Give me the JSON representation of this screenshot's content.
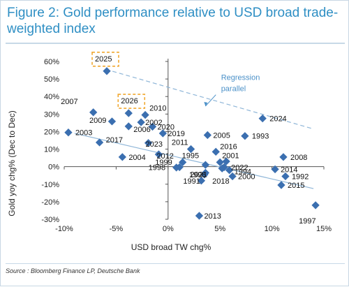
{
  "title": "Figure 2: Gold performance relative to USD broad trade-weighted index",
  "source": "Source : Bloomberg Finance LP, Deutsche Bank",
  "chart_data": {
    "type": "scatter",
    "xlabel": "USD broad TW chg%",
    "ylabel": "Gold yoy chg% (Dec to Dec)",
    "xlim": [
      -10,
      15
    ],
    "ylim": [
      -30,
      60
    ],
    "x_ticks": [
      -10,
      -5,
      0,
      5,
      10,
      15
    ],
    "x_tick_labels": [
      "-10%",
      "-5%",
      "0%",
      "5%",
      "10%",
      "15%"
    ],
    "y_ticks": [
      -30,
      -20,
      -10,
      0,
      10,
      20,
      30,
      40,
      50,
      60
    ],
    "y_tick_labels": [
      "-30%",
      "-20%",
      "-10%",
      "0%",
      "10%",
      "20%",
      "30%",
      "40%",
      "50%",
      "60%"
    ],
    "grid": false,
    "marker_color": "#3b6fb0",
    "line_color": "#8fb6d8",
    "highlight_color": "#f0a830",
    "points": [
      {
        "label": "2025",
        "x": -5.9,
        "y": 54.5,
        "highlight": true
      },
      {
        "label": "2026",
        "x": -3.8,
        "y": 30.5,
        "highlight": true
      },
      {
        "label": "2007",
        "x": -7.2,
        "y": 31.0
      },
      {
        "label": "2010",
        "x": -2.2,
        "y": 29.5
      },
      {
        "label": "2009",
        "x": -5.4,
        "y": 25.8
      },
      {
        "label": "2002",
        "x": -2.6,
        "y": 25.3
      },
      {
        "label": "2003",
        "x": -9.6,
        "y": 19.5
      },
      {
        "label": "2006",
        "x": -3.8,
        "y": 23.0
      },
      {
        "label": "2020",
        "x": -1.5,
        "y": 22.8
      },
      {
        "label": "2019",
        "x": -0.5,
        "y": 19.0
      },
      {
        "label": "2017",
        "x": -6.6,
        "y": 13.8
      },
      {
        "label": "2023",
        "x": -1.9,
        "y": 13.5
      },
      {
        "label": "2004",
        "x": -4.4,
        "y": 5.5
      },
      {
        "label": "2012",
        "x": -0.9,
        "y": 7.0
      },
      {
        "label": "2011",
        "x": 2.2,
        "y": 10.0
      },
      {
        "label": "2005",
        "x": 3.8,
        "y": 18.0
      },
      {
        "label": "1995",
        "x": 1.4,
        "y": 2.5
      },
      {
        "label": "2016",
        "x": 4.6,
        "y": 8.5
      },
      {
        "label": "2001",
        "x": 5.0,
        "y": 2.5
      },
      {
        "label": "1999",
        "x": 0.8,
        "y": -0.5
      },
      {
        "label": "1998",
        "x": 1.1,
        "y": -0.3
      },
      {
        "label": "2022",
        "x": 5.4,
        "y": -0.3
      },
      {
        "label": "2021",
        "x": 3.6,
        "y": -3.5
      },
      {
        "label": "1994",
        "x": 5.9,
        "y": -2.0
      },
      {
        "label": "1996",
        "x": 3.5,
        "y": -4.5
      },
      {
        "label": "2000",
        "x": 6.2,
        "y": -5.5
      },
      {
        "label": "1991",
        "x": 3.2,
        "y": -8.0
      },
      {
        "label": "2018",
        "x": 5.2,
        "y": -1.0
      },
      {
        "label": "1993",
        "x": 7.4,
        "y": 17.5
      },
      {
        "label": "2024",
        "x": 9.1,
        "y": 27.5
      },
      {
        "label": "2008",
        "x": 11.1,
        "y": 5.5
      },
      {
        "label": "2014",
        "x": 10.3,
        "y": -1.5
      },
      {
        "label": "1992",
        "x": 11.3,
        "y": -5.5
      },
      {
        "label": "2015",
        "x": 10.9,
        "y": -10.5
      },
      {
        "label": "2013",
        "x": 3.0,
        "y": -28.0
      },
      {
        "label": "1997",
        "x": 14.2,
        "y": -22.0
      },
      {
        "label": "",
        "x": 3.6,
        "y": 1.0
      },
      {
        "label": "",
        "x": 5.6,
        "y": 3.0
      }
    ],
    "regression_lines": [
      {
        "name": "regression",
        "x": [
          -9.0,
          14.0
        ],
        "y": [
          19.0,
          -12.5
        ],
        "dash": false
      },
      {
        "name": "Regression parallel",
        "x": [
          -6.0,
          14.0
        ],
        "y": [
          55.5,
          21.5
        ],
        "dash": true
      }
    ],
    "annotations": [
      {
        "text": "Regression",
        "x": 5.1,
        "y": 49.5
      },
      {
        "text": "parallel",
        "x": 5.1,
        "y": 43.0
      }
    ]
  }
}
